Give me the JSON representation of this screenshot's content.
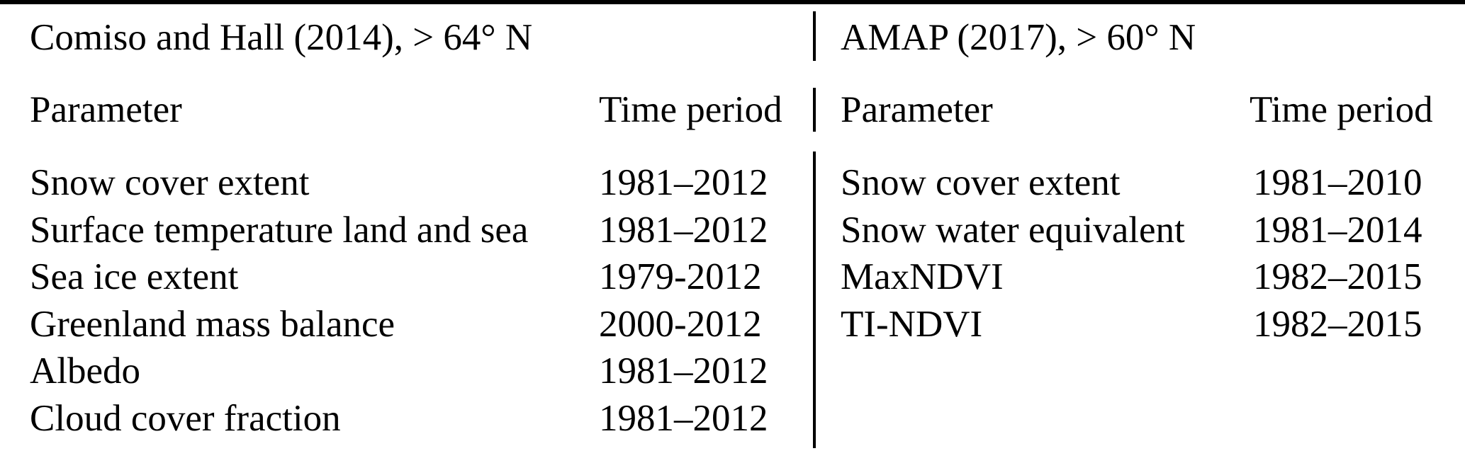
{
  "table": {
    "colors": {
      "text": "#000000",
      "background": "#ffffff",
      "rule": "#000000"
    },
    "sections": [
      {
        "title": "Comiso and Hall (2014), > 64° N",
        "columns": {
          "parameter": "Parameter",
          "period": "Time period"
        },
        "rows": [
          {
            "parameter": "Snow cover extent",
            "period": "1981–2012"
          },
          {
            "parameter": "Surface temperature land and sea",
            "period": "1981–2012"
          },
          {
            "parameter": "Sea ice extent",
            "period": "1979-2012"
          },
          {
            "parameter": "Greenland mass balance",
            "period": "2000-2012"
          },
          {
            "parameter": "Albedo",
            "period": "1981–2012"
          },
          {
            "parameter": "Cloud cover fraction",
            "period": "1981–2012"
          }
        ]
      },
      {
        "title": "AMAP (2017), > 60° N",
        "columns": {
          "parameter": "Parameter",
          "period": "Time period"
        },
        "rows": [
          {
            "parameter": "Snow cover extent",
            "period": "1981–2010"
          },
          {
            "parameter": "Snow water equivalent",
            "period": "1981–2014"
          },
          {
            "parameter": "MaxNDVI",
            "period": "1982–2015"
          },
          {
            "parameter": "TI-NDVI",
            "period": "1982–2015"
          }
        ]
      }
    ]
  }
}
